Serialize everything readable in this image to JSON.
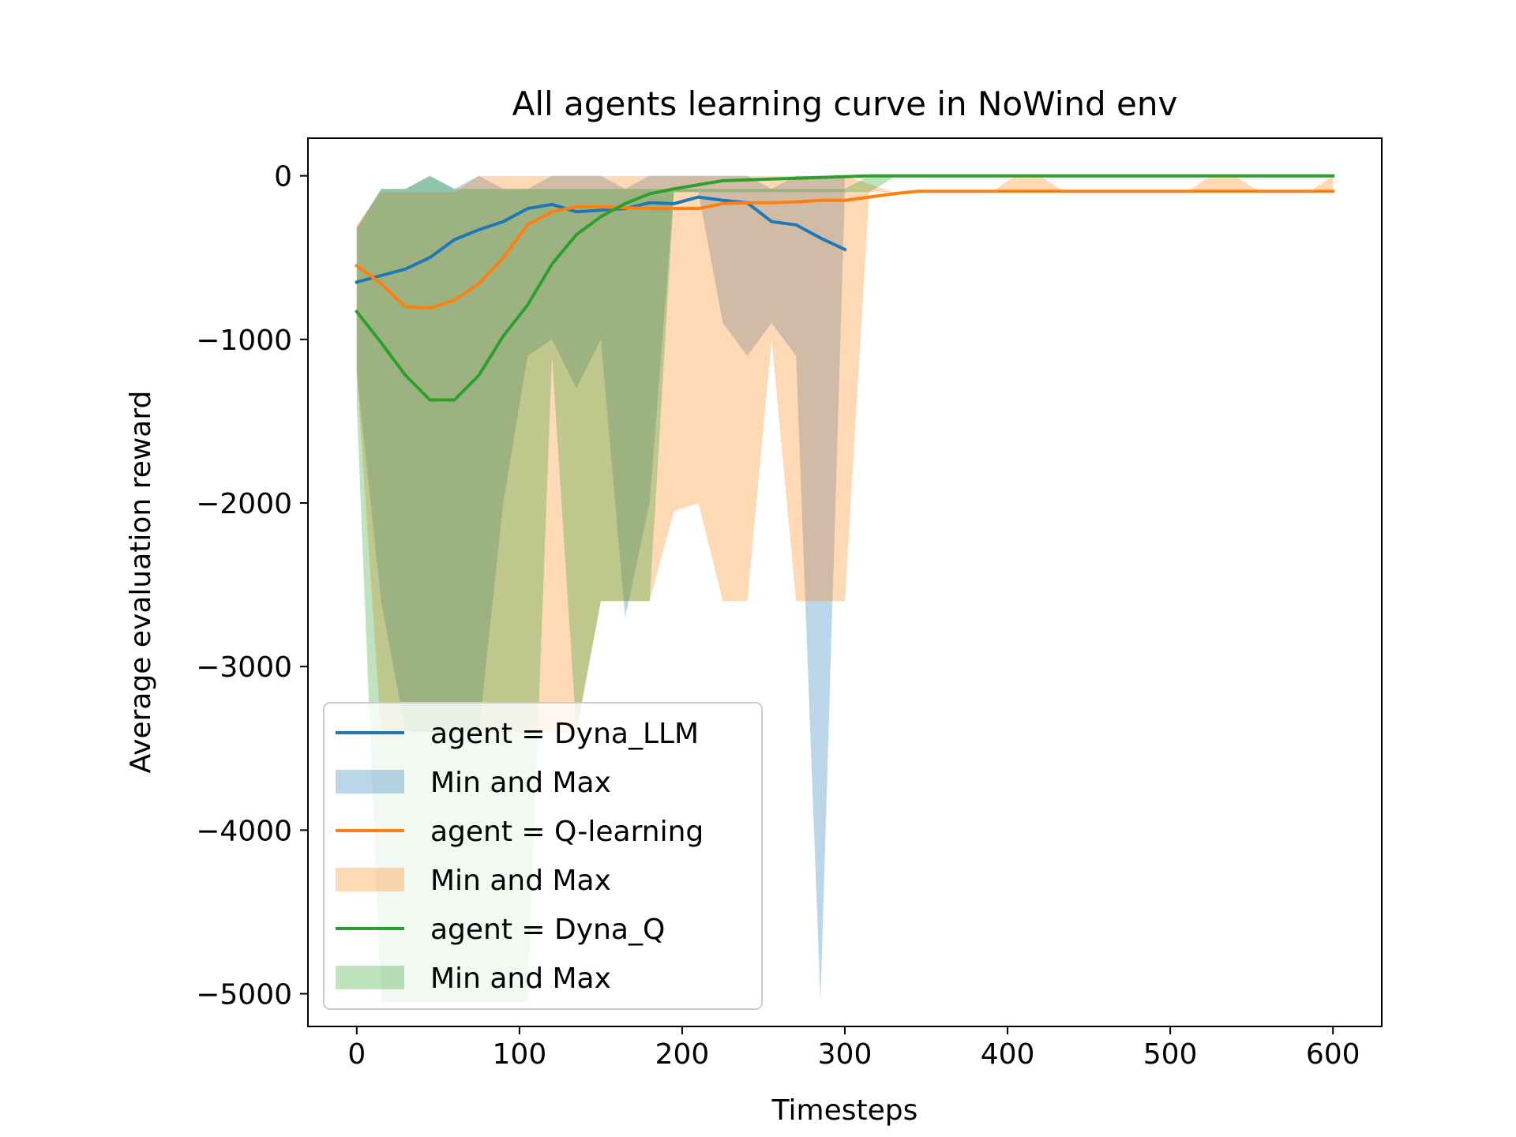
{
  "chart_data": {
    "type": "line",
    "title": "All agents learning curve in NoWind env",
    "xlabel": "Timesteps",
    "ylabel": "Average evaluation reward",
    "xlim": [
      -30,
      630
    ],
    "ylim": [
      -5200,
      230
    ],
    "xticks": [
      0,
      100,
      200,
      300,
      400,
      500,
      600
    ],
    "xtick_labels": [
      "0",
      "100",
      "200",
      "300",
      "400",
      "500",
      "600"
    ],
    "yticks": [
      0,
      -1000,
      -2000,
      -3000,
      -4000,
      -5000
    ],
    "ytick_labels": [
      "0",
      "−1000",
      "−2000",
      "−3000",
      "−4000",
      "−5000"
    ],
    "grid": false,
    "legend_position": "lower-left",
    "series": [
      {
        "name": "agent = Dyna_LLM",
        "band_name": "Min and Max",
        "color": "#1f77b4",
        "band_alpha": 0.3,
        "x": [
          0,
          15,
          30,
          45,
          60,
          75,
          90,
          105,
          120,
          135,
          150,
          165,
          180,
          195,
          210,
          225,
          240,
          255,
          270,
          285,
          300
        ],
        "y": [
          -650,
          -610,
          -570,
          -500,
          -390,
          -330,
          -280,
          -200,
          -175,
          -220,
          -210,
          -200,
          -165,
          -170,
          -130,
          -150,
          -165,
          -280,
          -300,
          -380,
          -450
        ],
        "max": [
          -320,
          -80,
          -80,
          0,
          -80,
          0,
          -80,
          -80,
          0,
          0,
          0,
          -80,
          0,
          0,
          0,
          0,
          0,
          -80,
          0,
          0,
          0
        ],
        "min": [
          -1200,
          -2600,
          -3400,
          -3400,
          -3400,
          -3400,
          -2000,
          -1100,
          -1000,
          -1300,
          -1000,
          -2700,
          -2000,
          -100,
          -100,
          -900,
          -1100,
          -900,
          -1100,
          -5050,
          -100
        ]
      },
      {
        "name": "agent = Q-learning",
        "band_name": "Min and Max",
        "color": "#ff7f0e",
        "band_alpha": 0.3,
        "x": [
          0,
          15,
          30,
          45,
          60,
          75,
          90,
          105,
          120,
          135,
          150,
          165,
          180,
          195,
          210,
          225,
          240,
          255,
          270,
          285,
          300,
          315,
          330,
          345,
          360,
          375,
          390,
          405,
          420,
          435,
          450,
          465,
          480,
          495,
          510,
          525,
          540,
          555,
          570,
          585,
          600
        ],
        "y": [
          -550,
          -660,
          -800,
          -810,
          -760,
          -660,
          -500,
          -300,
          -220,
          -190,
          -190,
          -195,
          -200,
          -200,
          -200,
          -170,
          -165,
          -165,
          -160,
          -150,
          -150,
          -130,
          -110,
          -95,
          -95,
          -95,
          -95,
          -95,
          -95,
          -95,
          -95,
          -95,
          -95,
          -95,
          -95,
          -95,
          -95,
          -95,
          -95,
          -95,
          -95
        ],
        "max": [
          -300,
          -100,
          -100,
          -100,
          -100,
          0,
          0,
          0,
          0,
          0,
          0,
          0,
          0,
          0,
          0,
          0,
          0,
          0,
          0,
          0,
          0,
          -50,
          -100,
          -100,
          -100,
          -100,
          -100,
          0,
          0,
          -100,
          -100,
          -100,
          -100,
          -100,
          -100,
          0,
          0,
          -100,
          -100,
          -100,
          0
        ],
        "min": [
          -1200,
          -3400,
          -3400,
          -3400,
          -3400,
          -3400,
          -3400,
          -3400,
          -3400,
          -3400,
          -2600,
          -2600,
          -2600,
          -2050,
          -2000,
          -2600,
          -2600,
          -1000,
          -2600,
          -2600,
          -2600,
          -100,
          -100,
          -100,
          -100,
          -100,
          -100,
          -100,
          -100,
          -100,
          -100,
          -100,
          -100,
          -100,
          -100,
          -100,
          -100,
          -100,
          -100,
          -100,
          -100
        ]
      },
      {
        "name": "agent = Dyna_Q",
        "band_name": "Min and Max",
        "color": "#2ca02c",
        "band_alpha": 0.3,
        "x": [
          0,
          15,
          30,
          45,
          60,
          75,
          90,
          105,
          120,
          135,
          150,
          165,
          180,
          195,
          210,
          225,
          240,
          255,
          270,
          285,
          300,
          315,
          330,
          345,
          360,
          375,
          390,
          405,
          420,
          435,
          450,
          465,
          480,
          495,
          510,
          525,
          540,
          555,
          570,
          585,
          600
        ],
        "y": [
          -830,
          -1020,
          -1220,
          -1370,
          -1370,
          -1220,
          -980,
          -790,
          -540,
          -360,
          -250,
          -170,
          -110,
          -80,
          -55,
          -30,
          -25,
          -20,
          -15,
          -10,
          -5,
          0,
          0,
          0,
          0,
          0,
          0,
          0,
          0,
          0,
          0,
          0,
          0,
          0,
          0,
          0,
          0,
          0,
          0,
          0,
          0
        ],
        "max": [
          -320,
          -80,
          -80,
          0,
          -80,
          -80,
          -80,
          -80,
          -80,
          -80,
          -80,
          -80,
          -80,
          -80,
          -80,
          -80,
          -80,
          -80,
          -80,
          -80,
          -80,
          0,
          0,
          0,
          0,
          0,
          0,
          0,
          0,
          0,
          0,
          0,
          0,
          0,
          0,
          0,
          0,
          0,
          0,
          0,
          0
        ],
        "min": [
          -1400,
          -5050,
          -5050,
          -5050,
          -5050,
          -5050,
          -5050,
          -5050,
          -1100,
          -3400,
          -2600,
          -2600,
          -2600,
          -100,
          -100,
          -100,
          -100,
          -100,
          -100,
          -100,
          -100,
          -100,
          -10,
          0,
          0,
          0,
          0,
          0,
          0,
          0,
          0,
          0,
          0,
          0,
          0,
          0,
          0,
          0,
          0,
          0,
          0
        ]
      }
    ]
  }
}
